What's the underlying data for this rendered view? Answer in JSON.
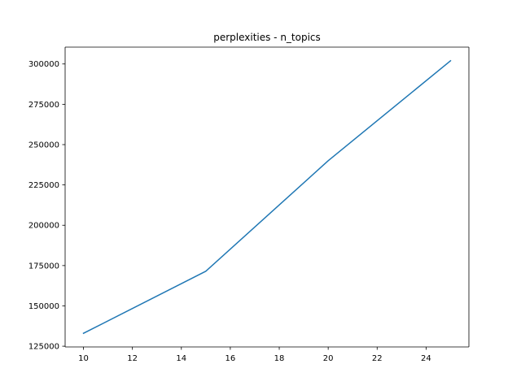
{
  "chart_data": {
    "type": "line",
    "title": "perplexities - n_topics",
    "xlabel": "",
    "ylabel": "",
    "x": [
      10,
      15,
      20,
      25
    ],
    "series": [
      {
        "values": [
          133000,
          171500,
          240000,
          302000
        ],
        "color": "#1f77b4"
      }
    ],
    "xlim": [
      9.25,
      25.75
    ],
    "ylim": [
      124550,
      310450
    ],
    "xticks": [
      10,
      12,
      14,
      16,
      18,
      20,
      22,
      24
    ],
    "yticks": [
      125000,
      150000,
      175000,
      200000,
      225000,
      250000,
      275000,
      300000
    ],
    "xtick_labels": [
      "10",
      "12",
      "14",
      "16",
      "18",
      "20",
      "22",
      "24"
    ],
    "ytick_labels": [
      "125000",
      "150000",
      "175000",
      "200000",
      "225000",
      "250000",
      "275000",
      "300000"
    ],
    "grid": false,
    "legend": "none"
  }
}
